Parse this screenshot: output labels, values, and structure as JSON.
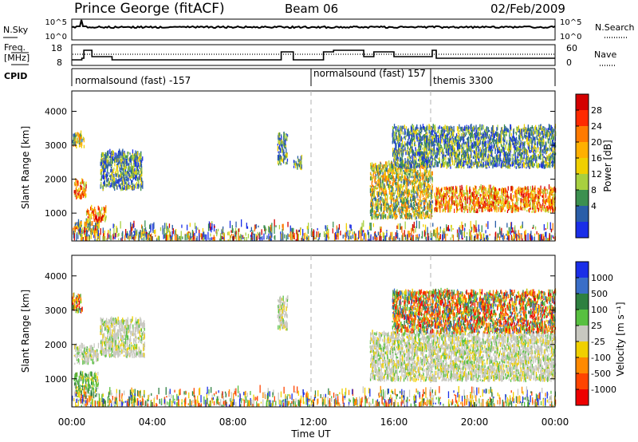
{
  "header": {
    "station": "Prince George (fitACF)",
    "beam": "Beam 06",
    "date": "02/Feb/2009"
  },
  "noise_panel": {
    "left_label": "N.Sky",
    "right_label": "N.Search",
    "left_ticks": [
      "10^5",
      "10^0"
    ],
    "right_ticks": [
      "10^5",
      "10^0"
    ]
  },
  "freq_panel": {
    "left_label_1": "Freq.",
    "left_label_2": "[MHz]",
    "right_label": "Nave",
    "left_ticks": [
      "18",
      "8"
    ],
    "right_ticks": [
      "60",
      "0"
    ]
  },
  "cpid": {
    "label": "CPID",
    "segments": [
      {
        "text": "normalsound (fast) -157"
      },
      {
        "text": "normalsound (fast) 157"
      },
      {
        "text": "themis 3300"
      }
    ]
  },
  "axes": {
    "xlabel": "Time UT",
    "xticks": [
      "00:00",
      "04:00",
      "08:00",
      "12:00",
      "16:00",
      "20:00",
      "00:00"
    ],
    "ylabel": "Slant Range [km]",
    "yticks": [
      "4000",
      "3000",
      "2000",
      "1000"
    ]
  },
  "colorbars": {
    "power": {
      "title": "Power [dB]",
      "labels": [
        "28",
        "24",
        "20",
        "16",
        "12",
        "8",
        "4"
      ],
      "colors": [
        "#d40000",
        "#ff2a00",
        "#ff7a00",
        "#ffb000",
        "#f0d000",
        "#a8d040",
        "#3c9050",
        "#2a5ea8",
        "#1a2ee8"
      ]
    },
    "velocity": {
      "title": "Velocity [m s⁻¹]",
      "labels": [
        "1000",
        "500",
        "100",
        "25",
        "-25",
        "-100",
        "-500",
        "-1000"
      ],
      "colors": [
        "#1a2ee8",
        "#3a6ec8",
        "#2e8040",
        "#58c040",
        "#c8c8c0",
        "#f0d000",
        "#ff8a00",
        "#ff4400",
        "#ee0000"
      ]
    }
  },
  "chart_data": {
    "type": "heatmap",
    "x_range": [
      "00:00",
      "24:00"
    ],
    "y_range_km": [
      180,
      4600
    ],
    "power_echoes": [
      {
        "t0": 0.0,
        "t1": 0.6,
        "r0": 2900,
        "r1": 3300,
        "level": "mid"
      },
      {
        "t0": 0.1,
        "t1": 0.7,
        "r0": 1400,
        "r1": 1900,
        "level": "high"
      },
      {
        "t0": 0.1,
        "t1": 1.3,
        "r0": 350,
        "r1": 700,
        "level": "mid"
      },
      {
        "t0": 0.7,
        "t1": 1.7,
        "r0": 700,
        "r1": 1100,
        "level": "high"
      },
      {
        "t0": 1.4,
        "t1": 3.5,
        "r0": 1650,
        "r1": 2750,
        "level": "low"
      },
      {
        "t0": 10.2,
        "t1": 10.7,
        "r0": 2400,
        "r1": 3300,
        "level": "low"
      },
      {
        "t0": 11.0,
        "t1": 11.4,
        "r0": 2250,
        "r1": 2600,
        "level": "low"
      },
      {
        "t0": 14.8,
        "t1": 17.9,
        "r0": 800,
        "r1": 2400,
        "level": "mid"
      },
      {
        "t0": 15.9,
        "t1": 24.0,
        "r0": 2300,
        "r1": 3500,
        "level": "low"
      },
      {
        "t0": 18.0,
        "t1": 24.0,
        "r0": 1000,
        "r1": 1700,
        "level": "high"
      },
      {
        "t0": 0.0,
        "t1": 24.0,
        "r0": 180,
        "r1": 600,
        "level": "ground"
      }
    ],
    "velocity_echoes": [
      {
        "t0": 0.0,
        "t1": 0.5,
        "r0": 2900,
        "r1": 3400,
        "band": "-500"
      },
      {
        "t0": 0.1,
        "t1": 1.3,
        "r0": 1400,
        "r1": 1900,
        "band": "-25"
      },
      {
        "t0": 0.1,
        "t1": 1.3,
        "r0": 450,
        "r1": 1100,
        "band": "100"
      },
      {
        "t0": 1.4,
        "t1": 3.6,
        "r0": 1600,
        "r1": 2700,
        "band": "-25"
      },
      {
        "t0": 10.2,
        "t1": 10.7,
        "r0": 2400,
        "r1": 3300,
        "band": "-25"
      },
      {
        "t0": 14.8,
        "t1": 24.0,
        "r0": 900,
        "r1": 2300,
        "band": "-25"
      },
      {
        "t0": 15.9,
        "t1": 24.0,
        "r0": 2300,
        "r1": 3500,
        "band": "-500"
      },
      {
        "t0": 0.0,
        "t1": 24.0,
        "r0": 180,
        "r1": 600,
        "band": "ground"
      }
    ],
    "freq_series_mhz": [
      {
        "t": 0.0,
        "v": 11
      },
      {
        "t": 0.5,
        "v": 12
      },
      {
        "t": 0.6,
        "v": 17
      },
      {
        "t": 1.0,
        "v": 13
      },
      {
        "t": 2.0,
        "v": 11
      },
      {
        "t": 10.3,
        "v": 11
      },
      {
        "t": 10.4,
        "v": 16
      },
      {
        "t": 11.0,
        "v": 11
      },
      {
        "t": 12.0,
        "v": 11
      },
      {
        "t": 12.5,
        "v": 16
      },
      {
        "t": 13.0,
        "v": 17
      },
      {
        "t": 14.5,
        "v": 13
      },
      {
        "t": 15.0,
        "v": 16
      },
      {
        "t": 16.0,
        "v": 13
      },
      {
        "t": 17.8,
        "v": 13
      },
      {
        "t": 17.9,
        "v": 17
      },
      {
        "t": 18.1,
        "v": 12
      },
      {
        "t": 24.0,
        "v": 12
      }
    ]
  }
}
